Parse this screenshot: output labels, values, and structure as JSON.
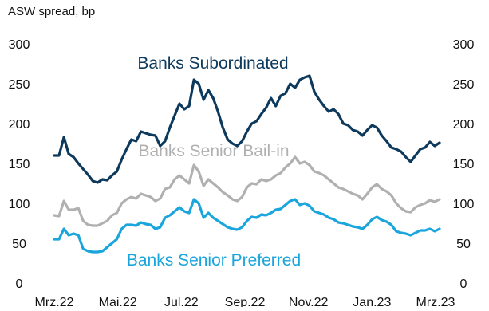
{
  "chart_data": {
    "type": "line",
    "ylabel": "ASW spread, bp",
    "xlabel": "",
    "title": "",
    "ylim": [
      0,
      300
    ],
    "y_ticks": [
      0,
      50,
      100,
      150,
      200,
      250,
      300
    ],
    "x_ticks": [
      "Mrz.22",
      "Mai.22",
      "Jul.22",
      "Sep.22",
      "Nov.22",
      "Jan.23",
      "Mrz.23"
    ],
    "grid": false,
    "legend": "inline labels",
    "series": [
      {
        "name": "Banks Subordinated",
        "color": "#0d3a5c",
        "values": [
          160,
          160,
          183,
          162,
          158,
          150,
          143,
          136,
          128,
          126,
          130,
          129,
          135,
          140,
          155,
          168,
          180,
          178,
          190,
          188,
          186,
          185,
          172,
          178,
          195,
          210,
          225,
          218,
          222,
          255,
          250,
          230,
          242,
          232,
          215,
          195,
          180,
          175,
          172,
          178,
          190,
          200,
          203,
          212,
          220,
          232,
          222,
          235,
          238,
          250,
          245,
          255,
          258,
          260,
          240,
          230,
          222,
          215,
          218,
          212,
          200,
          198,
          192,
          190,
          185,
          192,
          198,
          195,
          185,
          178,
          170,
          168,
          165,
          158,
          152,
          160,
          168,
          170,
          177,
          172,
          176
        ]
      },
      {
        "name": "Banks Senior Bail-in",
        "color": "#b0b0b0",
        "values": [
          85,
          84,
          103,
          92,
          92,
          94,
          78,
          73,
          72,
          72,
          75,
          78,
          85,
          88,
          100,
          105,
          108,
          106,
          112,
          110,
          108,
          103,
          106,
          118,
          120,
          130,
          135,
          130,
          125,
          148,
          140,
          122,
          130,
          125,
          120,
          114,
          110,
          105,
          103,
          108,
          120,
          125,
          124,
          130,
          128,
          130,
          135,
          138,
          145,
          150,
          158,
          150,
          152,
          148,
          140,
          138,
          135,
          130,
          125,
          120,
          118,
          115,
          112,
          110,
          105,
          112,
          120,
          124,
          118,
          115,
          110,
          100,
          94,
          90,
          89,
          95,
          98,
          100,
          104,
          102,
          105
        ]
      },
      {
        "name": "Banks Senior Preferred",
        "color": "#1aa5dc",
        "values": [
          55,
          55,
          68,
          60,
          62,
          60,
          43,
          40,
          39,
          39,
          40,
          45,
          50,
          55,
          68,
          73,
          73,
          72,
          76,
          74,
          73,
          68,
          70,
          82,
          85,
          90,
          95,
          90,
          88,
          105,
          100,
          82,
          88,
          82,
          78,
          74,
          70,
          68,
          67,
          70,
          78,
          83,
          82,
          86,
          85,
          88,
          92,
          93,
          98,
          103,
          105,
          98,
          100,
          97,
          90,
          88,
          86,
          82,
          80,
          76,
          75,
          73,
          71,
          70,
          68,
          73,
          80,
          83,
          79,
          77,
          73,
          65,
          63,
          62,
          60,
          63,
          66,
          66,
          68,
          65,
          68
        ]
      }
    ],
    "annotations": [
      {
        "text": "Banks Subordinated",
        "series": "Banks Subordinated"
      },
      {
        "text": "Banks Senior Bail-in",
        "series": "Banks Senior Bail-in"
      },
      {
        "text": "Banks Senior Preferred",
        "series": "Banks Senior Preferred"
      }
    ]
  }
}
